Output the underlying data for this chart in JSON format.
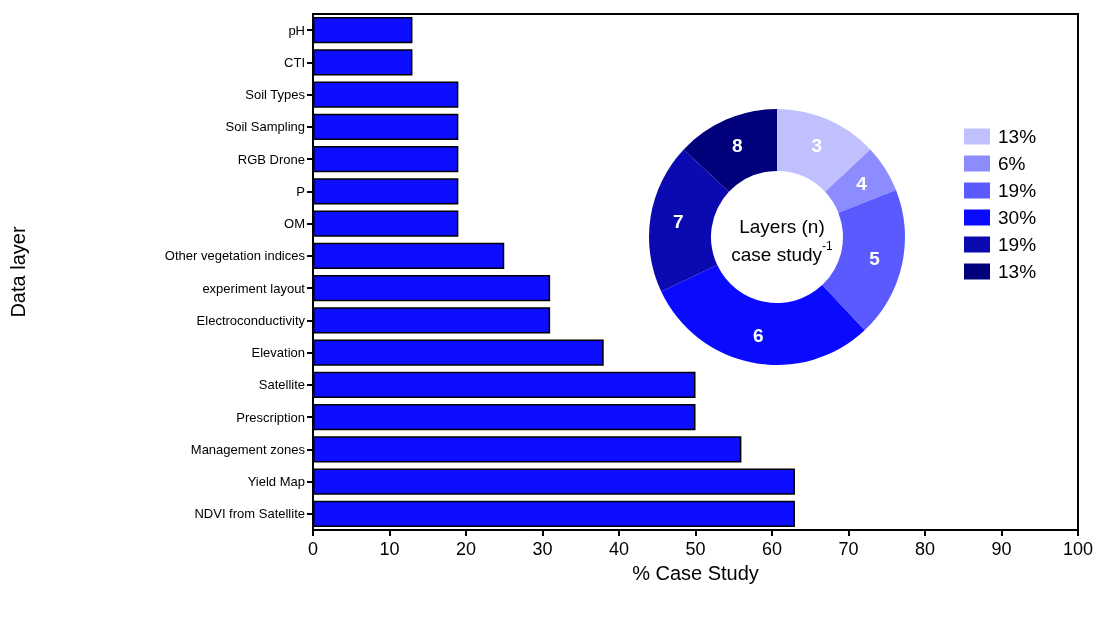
{
  "chart_data": [
    {
      "type": "bar",
      "orientation": "horizontal",
      "xlabel": "% Case Study",
      "ylabel": "Data layer",
      "categories": [
        "pH",
        "CTI",
        "Soil Types",
        "Soil Sampling",
        "RGB Drone",
        "P",
        "OM",
        "Other vegetation indices",
        "experiment layout",
        "Electroconductivity",
        "Elevation",
        "Satellite",
        "Prescription",
        "Management zones",
        "Yield Map",
        "NDVI from Satellite"
      ],
      "values": [
        13,
        13,
        19,
        19,
        19,
        19,
        19,
        25,
        31,
        31,
        38,
        50,
        50,
        56,
        63,
        63
      ],
      "color": "#0d0dff",
      "xlim": [
        0,
        100
      ],
      "xticks": [
        0,
        10,
        20,
        30,
        40,
        50,
        60,
        70,
        80,
        90,
        100
      ],
      "grid": false,
      "legend": false
    },
    {
      "type": "donut",
      "title": "Layers (n) case study$^{-1}$",
      "categories": [
        "13%",
        "6%",
        "19%",
        "30%",
        "19%",
        "13%"
      ],
      "values": [
        13,
        6,
        19,
        30,
        19,
        13
      ],
      "annotations": [
        "3",
        "4",
        "5",
        "6",
        "7",
        "8"
      ],
      "colors": [
        "#c0c0ff",
        "#8c8cff",
        "#5a5aff",
        "#0a0aff",
        "#0a0ab0",
        "#00007a"
      ],
      "legend": "right"
    }
  ]
}
